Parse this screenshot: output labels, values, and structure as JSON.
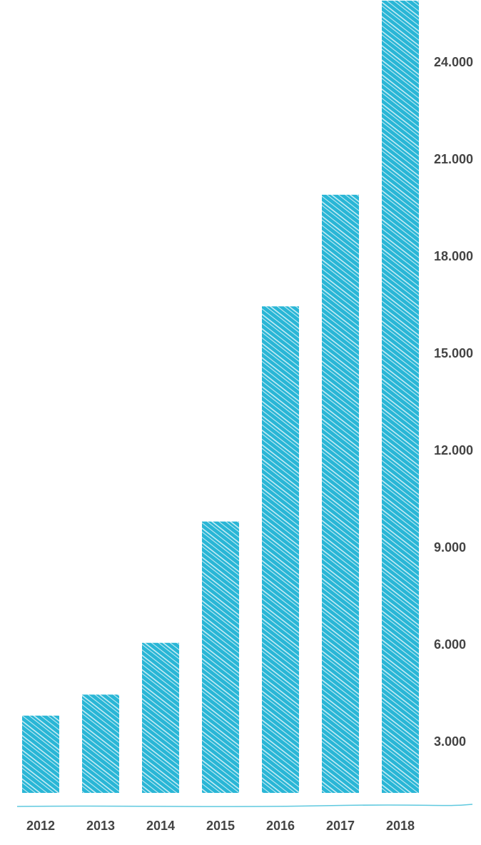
{
  "chart_data": {
    "type": "bar",
    "categories": [
      "2012",
      "2013",
      "2014",
      "2015",
      "2016",
      "2017",
      "2018"
    ],
    "series": [
      {
        "values": [
          3800,
          4450,
          6050,
          9800,
          16450,
          19900,
          25900
        ]
      }
    ],
    "yaxis": {
      "position": "right",
      "ticks": [
        3000,
        6000,
        9000,
        12000,
        15000,
        18000,
        21000,
        24000
      ],
      "tick_labels": [
        "3.000",
        "6.000",
        "9.000",
        "12.000",
        "15.000",
        "18.000",
        "21.000",
        "24.000"
      ]
    },
    "grid": false,
    "legend": "none",
    "title": "",
    "xlabel": "",
    "ylabel": "",
    "colors": {
      "bar": "#29b6d6",
      "hatch": "#ffffff",
      "baseline": "#5fc9df",
      "text": "#444444"
    }
  }
}
